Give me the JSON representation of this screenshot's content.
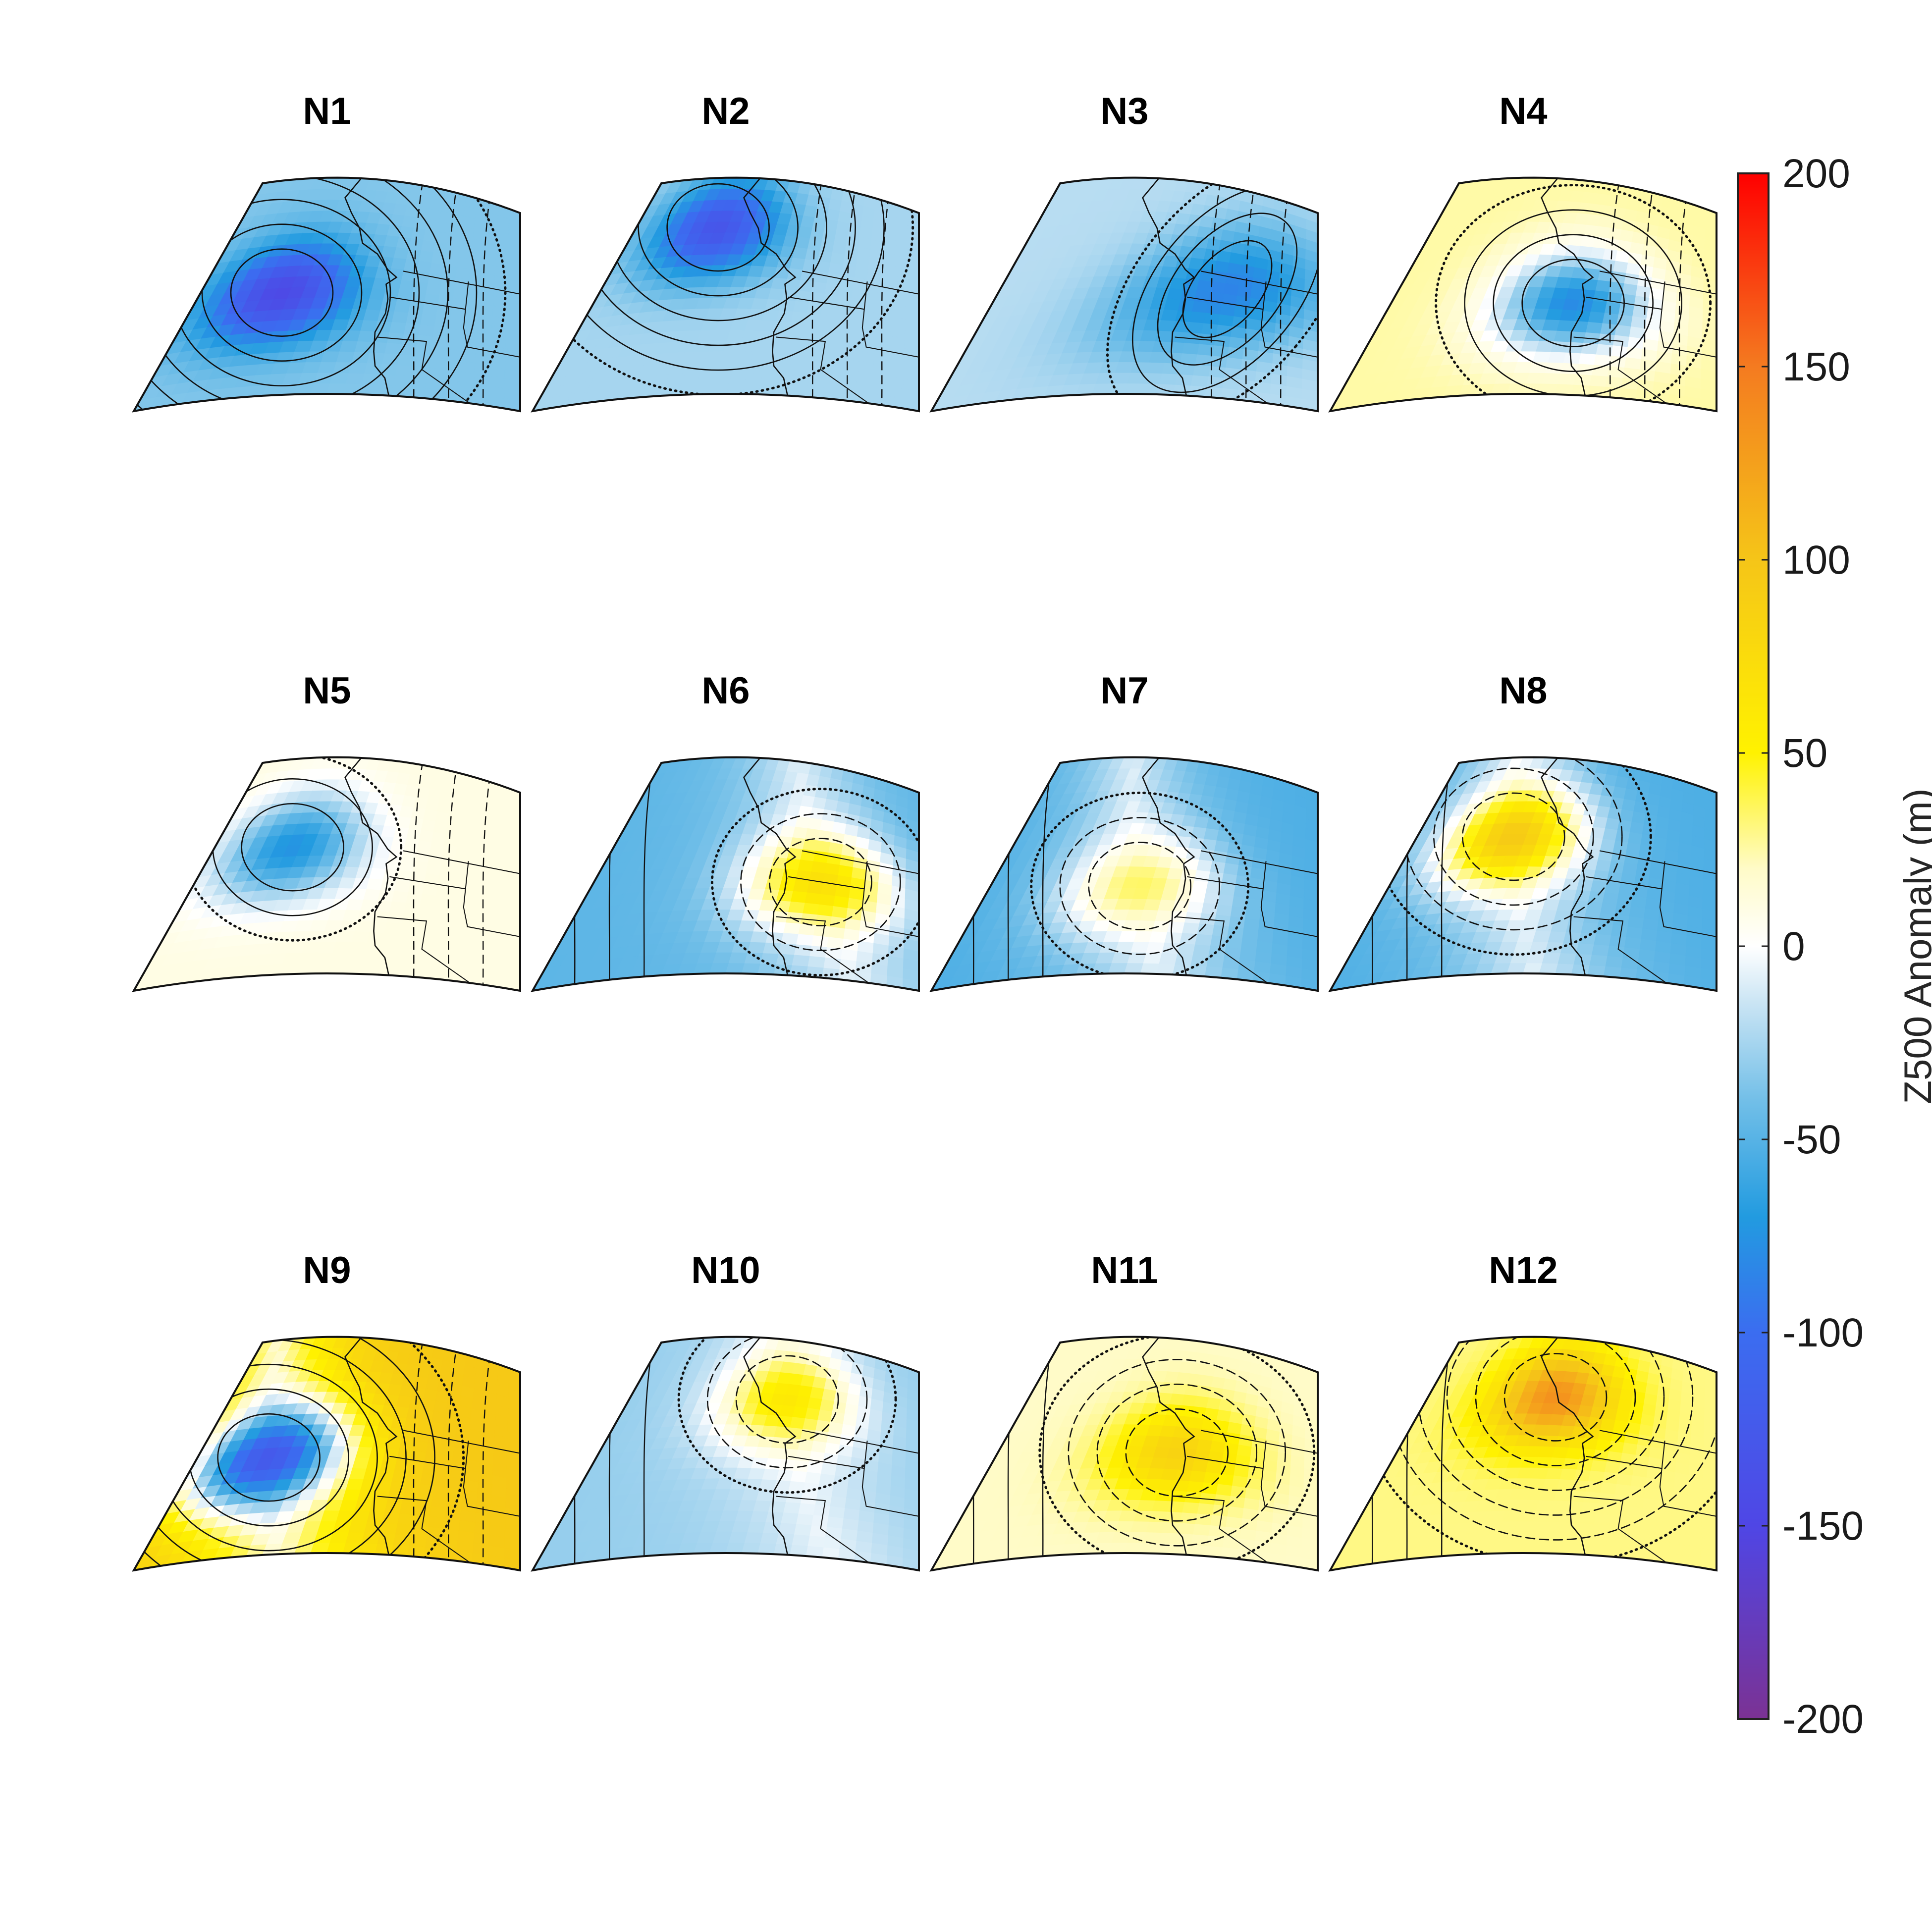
{
  "colorbar": {
    "label": "Z500 Anomaly (m)",
    "min": -200,
    "max": 200,
    "ticks": [
      200,
      150,
      100,
      50,
      0,
      -50,
      -100,
      -150,
      -200
    ],
    "stops": [
      {
        "v": -200,
        "c": "#7b3294"
      },
      {
        "v": -150,
        "c": "#4f46e5"
      },
      {
        "v": -100,
        "c": "#3b6df0"
      },
      {
        "v": -70,
        "c": "#229be0"
      },
      {
        "v": -40,
        "c": "#72bfe8"
      },
      {
        "v": -15,
        "c": "#c9e4f4"
      },
      {
        "v": 0,
        "c": "#ffffff"
      },
      {
        "v": 20,
        "c": "#fffbc8"
      },
      {
        "v": 50,
        "c": "#fff200"
      },
      {
        "v": 100,
        "c": "#f5c518"
      },
      {
        "v": 150,
        "c": "#f47b20"
      },
      {
        "v": 200,
        "c": "#ff0000"
      }
    ]
  },
  "panels": [
    {
      "id": "N1",
      "title": "N1",
      "center": {
        "lon": -134.0,
        "lat": 46.5
      },
      "peak_anomaly": -145,
      "bg_anomaly": -35,
      "shape": "round"
    },
    {
      "id": "N2",
      "title": "N2",
      "center": {
        "lon": -133.0,
        "lat": 53.0
      },
      "peak_anomaly": -130,
      "bg_anomaly": -25,
      "shape": "round"
    },
    {
      "id": "N3",
      "title": "N3",
      "center": {
        "lon": -120.5,
        "lat": 47.5
      },
      "peak_anomaly": -85,
      "bg_anomaly": -20,
      "shape": "tilted"
    },
    {
      "id": "N4",
      "title": "N4",
      "center": {
        "lon": -125.0,
        "lat": 45.5
      },
      "peak_anomaly": -80,
      "bg_anomaly": 25,
      "shape": "round"
    },
    {
      "id": "N5",
      "title": "N5",
      "center": {
        "lon": -134.0,
        "lat": 49.0
      },
      "peak_anomaly": -75,
      "bg_anomaly": 10,
      "shape": "round"
    },
    {
      "id": "N6",
      "title": "N6",
      "center": {
        "lon": -121.0,
        "lat": 46.0
      },
      "peak_anomaly": 70,
      "bg_anomaly": -40,
      "shape": "dipole"
    },
    {
      "id": "N7",
      "title": "N7",
      "center": {
        "lon": -128.0,
        "lat": 45.0
      },
      "peak_anomaly": 35,
      "bg_anomaly": -45,
      "shape": "dipole"
    },
    {
      "id": "N8",
      "title": "N8",
      "center": {
        "lon": -132.0,
        "lat": 50.0
      },
      "peak_anomaly": 95,
      "bg_anomaly": -45,
      "shape": "dipole"
    },
    {
      "id": "N9",
      "title": "N9",
      "center": {
        "lon": -135.0,
        "lat": 46.0
      },
      "peak_anomaly": -125,
      "bg_anomaly": 80,
      "shape": "dipole"
    },
    {
      "id": "N10",
      "title": "N10",
      "center": {
        "lon": -125.5,
        "lat": 52.0
      },
      "peak_anomaly": 60,
      "bg_anomaly": -25,
      "shape": "dipole"
    },
    {
      "id": "N11",
      "title": "N11",
      "center": {
        "lon": -125.0,
        "lat": 46.5
      },
      "peak_anomaly": 85,
      "bg_anomaly": 20,
      "shape": "round"
    },
    {
      "id": "N12",
      "title": "N12",
      "center": {
        "lon": -128.5,
        "lat": 52.0
      },
      "peak_anomaly": 135,
      "bg_anomaly": 30,
      "shape": "round"
    }
  ]
}
